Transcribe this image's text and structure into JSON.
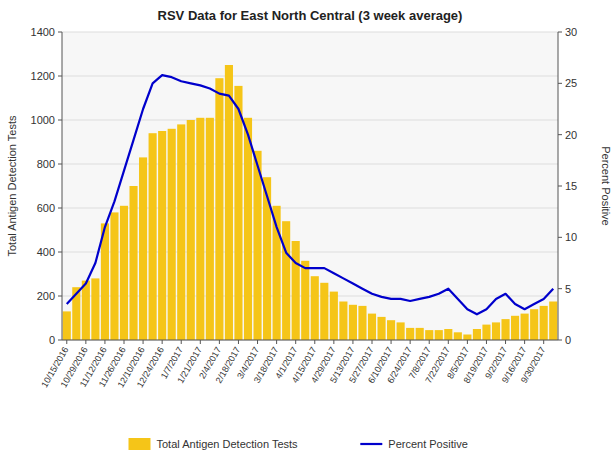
{
  "chart_data": {
    "type": "bar",
    "title": "RSV Data for East North Central (3 week average)",
    "ylabel": "Total Antigen Detection Tests",
    "y2label": "Percent Positive",
    "categories": [
      "10/15/2016",
      null,
      "10/29/2016",
      null,
      "11/12/2016",
      null,
      "11/26/2016",
      null,
      "12/10/2016",
      null,
      "12/24/2016",
      null,
      "1/7/2017",
      null,
      "1/21/2017",
      null,
      "2/4/2017",
      null,
      "2/18/2017",
      null,
      "3/4/2017",
      null,
      "3/18/2017",
      null,
      "4/1/2017",
      null,
      "4/15/2017",
      null,
      "4/29/2017",
      null,
      "5/13/2017",
      null,
      "5/27/2017",
      null,
      "6/10/2017",
      null,
      "6/24/2017",
      null,
      "7/8/2017",
      null,
      "7/22/2017",
      null,
      "8/5/2017",
      null,
      "8/19/2017",
      null,
      "9/2/2017",
      null,
      "9/16/2017",
      null,
      "9/30/2017",
      null
    ],
    "series": [
      {
        "name": "Total Antigen Detection Tests",
        "type": "bar",
        "color": "#F5C518",
        "values": [
          130,
          240,
          270,
          280,
          530,
          580,
          610,
          700,
          830,
          940,
          950,
          960,
          980,
          1000,
          1010,
          1010,
          1190,
          1250,
          1155,
          1010,
          860,
          740,
          610,
          540,
          450,
          360,
          290,
          260,
          220,
          175,
          160,
          155,
          120,
          105,
          90,
          80,
          55,
          55,
          45,
          45,
          50,
          35,
          25,
          50,
          70,
          80,
          95,
          110,
          120,
          140,
          155,
          175
        ]
      },
      {
        "name": "Percent Positive",
        "type": "line",
        "color": "#0000CC",
        "axis": "y2",
        "values": [
          3.5,
          4.5,
          5.5,
          7.5,
          11.0,
          13.5,
          16.5,
          19.5,
          22.5,
          25.0,
          25.8,
          25.6,
          25.2,
          25.0,
          24.8,
          24.5,
          24.0,
          23.8,
          22.5,
          20.0,
          17.0,
          14.0,
          11.0,
          8.5,
          7.5,
          7.0,
          7.0,
          7.0,
          6.5,
          6.0,
          5.5,
          5.0,
          4.5,
          4.2,
          4.0,
          4.0,
          3.8,
          4.0,
          4.2,
          4.5,
          5.0,
          4.0,
          3.0,
          2.5,
          3.0,
          4.0,
          4.5,
          3.5,
          3.0,
          3.5,
          4.0,
          5.0
        ]
      }
    ],
    "ylim": [
      0,
      1400
    ],
    "yticks": [
      0,
      200,
      400,
      600,
      800,
      1000,
      1200,
      1400
    ],
    "y2lim": [
      0,
      30
    ],
    "y2ticks": [
      0,
      5,
      10,
      15,
      20,
      25,
      30
    ],
    "grid": true,
    "legend": "bottom"
  }
}
